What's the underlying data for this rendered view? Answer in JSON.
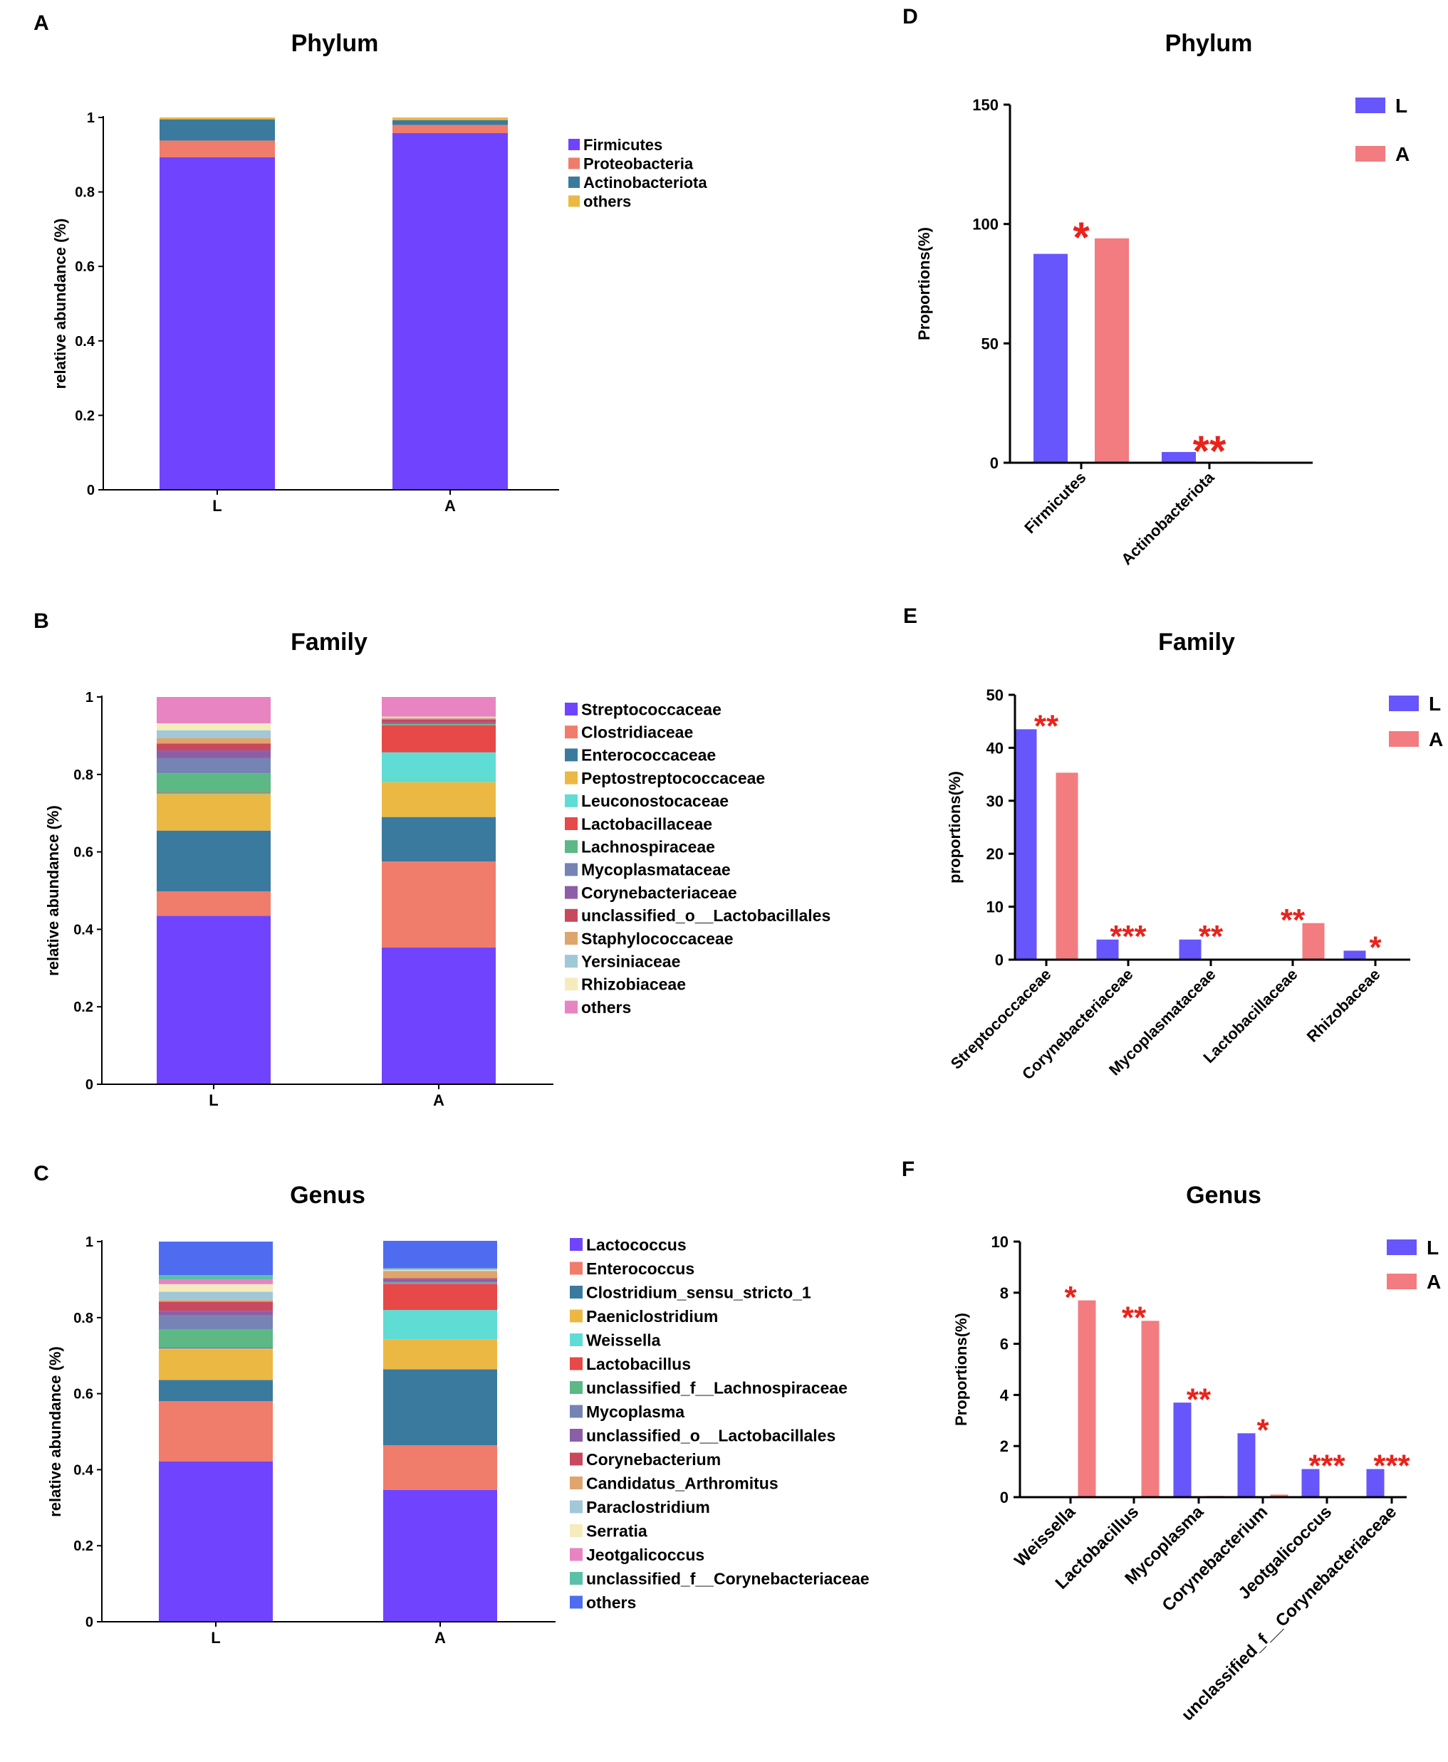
{
  "chart_data": [
    {
      "panel": "A",
      "type": "bar",
      "stacked": true,
      "title": "Phylum",
      "ylabel": "relative abundance (%)",
      "xlabel": "",
      "ylim": [
        0,
        1
      ],
      "yticks": [
        "0",
        "0.2",
        "0.4",
        "0.6",
        "0.8",
        "1"
      ],
      "categories": [
        "L",
        "A"
      ],
      "legend_position": "right",
      "series": [
        {
          "name": "Firmicutes",
          "color": "#7044ff",
          "values": [
            0.893,
            0.958
          ]
        },
        {
          "name": "Proteobacteria",
          "color": "#f07c6c",
          "values": [
            0.045,
            0.022
          ]
        },
        {
          "name": "Actinobacteriota",
          "color": "#3a7a9e",
          "values": [
            0.057,
            0.013
          ]
        },
        {
          "name": "others",
          "color": "#ecb844",
          "values": [
            0.005,
            0.007
          ]
        }
      ]
    },
    {
      "panel": "B",
      "type": "bar",
      "stacked": true,
      "title": "Family",
      "ylabel": "relative abundance (%)",
      "xlabel": "",
      "ylim": [
        0,
        1
      ],
      "yticks": [
        "0",
        "0.2",
        "0.4",
        "0.6",
        "0.8",
        "1"
      ],
      "categories": [
        "L",
        "A"
      ],
      "legend_position": "right",
      "series": [
        {
          "name": "Streptococcaceae",
          "color": "#7044ff",
          "values": [
            0.435,
            0.353
          ]
        },
        {
          "name": "Clostridiaceae",
          "color": "#f07c6c",
          "values": [
            0.063,
            0.222
          ]
        },
        {
          "name": "Enterococcaceae",
          "color": "#3a7a9e",
          "values": [
            0.157,
            0.115
          ]
        },
        {
          "name": "Peptostreptococcaceae",
          "color": "#ecb844",
          "values": [
            0.094,
            0.09
          ]
        },
        {
          "name": "Leuconostocaceae",
          "color": "#5fdcd4",
          "values": [
            0.002,
            0.077
          ]
        },
        {
          "name": "Lactobacillaceae",
          "color": "#e74848",
          "values": [
            0.002,
            0.07
          ]
        },
        {
          "name": "Lachnospiraceae",
          "color": "#5cb885",
          "values": [
            0.05,
            0.003
          ]
        },
        {
          "name": "Mycoplasmataceae",
          "color": "#7584b4",
          "values": [
            0.039,
            0.002
          ]
        },
        {
          "name": "Corynebacteriaceae",
          "color": "#8d5ea8",
          "values": [
            0.02,
            0.002
          ]
        },
        {
          "name": "unclassified_o__Lactobacillales",
          "color": "#c8485e",
          "values": [
            0.018,
            0.008
          ]
        },
        {
          "name": "Staphylococcaceae",
          "color": "#dea56d",
          "values": [
            0.014,
            0.003
          ]
        },
        {
          "name": "Yersiniaceae",
          "color": "#a0c8d8",
          "values": [
            0.02,
            0.002
          ]
        },
        {
          "name": "Rhizobiaceae",
          "color": "#f6ebbd",
          "values": [
            0.018,
            0.002
          ]
        },
        {
          "name": "others",
          "color": "#e884c2",
          "values": [
            0.068,
            0.051
          ]
        }
      ]
    },
    {
      "panel": "C",
      "type": "bar",
      "stacked": true,
      "title": "Genus",
      "ylabel": "relative abundance (%)",
      "xlabel": "",
      "ylim": [
        0,
        1
      ],
      "yticks": [
        "0",
        "0.2",
        "0.4",
        "0.6",
        "0.8",
        "1"
      ],
      "categories": [
        "L",
        "A"
      ],
      "legend_position": "right",
      "series": [
        {
          "name": "Lactococcus",
          "color": "#7044ff",
          "values": [
            0.422,
            0.347
          ]
        },
        {
          "name": "Enterococcus",
          "color": "#f07c6c",
          "values": [
            0.158,
            0.117
          ]
        },
        {
          "name": "Clostridium_sensu_stricto_1",
          "color": "#3a7a9e",
          "values": [
            0.056,
            0.2
          ]
        },
        {
          "name": "Paeniclostridium",
          "color": "#ecb844",
          "values": [
            0.081,
            0.079
          ]
        },
        {
          "name": "Weissella",
          "color": "#5fdcd4",
          "values": [
            0.002,
            0.077
          ]
        },
        {
          "name": "Lactobacillus",
          "color": "#e74848",
          "values": [
            0.002,
            0.069
          ]
        },
        {
          "name": "unclassified_f__Lachnospiraceae",
          "color": "#5cb885",
          "values": [
            0.048,
            0.003
          ]
        },
        {
          "name": "Mycoplasma",
          "color": "#7584b4",
          "values": [
            0.037,
            0.002
          ]
        },
        {
          "name": "unclassified_o__Lactobacillales",
          "color": "#8d5ea8",
          "values": [
            0.012,
            0.008
          ]
        },
        {
          "name": "Corynebacterium",
          "color": "#c8485e",
          "values": [
            0.024,
            0.002
          ]
        },
        {
          "name": "Candidatus_Arthromitus",
          "color": "#dea56d",
          "values": [
            0.004,
            0.018
          ]
        },
        {
          "name": "Paraclostridium",
          "color": "#a0c8d8",
          "values": [
            0.022,
            0.002
          ]
        },
        {
          "name": "Serratia",
          "color": "#f6ebbd",
          "values": [
            0.02,
            0.002
          ]
        },
        {
          "name": "Jeotgalicoccus",
          "color": "#e884c2",
          "values": [
            0.012,
            0.002
          ]
        },
        {
          "name": "unclassified_f__Corynebacteriaceae",
          "color": "#5bc0a8",
          "values": [
            0.012,
            0.002
          ]
        },
        {
          "name": "others",
          "color": "#4f6cf0",
          "values": [
            0.088,
            0.072
          ]
        }
      ]
    },
    {
      "panel": "D",
      "type": "bar",
      "stacked": false,
      "title": "Phylum",
      "ylabel": "Proportions(%)",
      "xlabel": "",
      "ylim": [
        0,
        150
      ],
      "yticks": [
        "0",
        "50",
        "100",
        "150"
      ],
      "categories": [
        "Firmicutes",
        "Actinobacteriota"
      ],
      "significance": [
        "*",
        "**"
      ],
      "legend_position": "top-right",
      "series": [
        {
          "name": "L",
          "color": "#6656fb",
          "values": [
            87.5,
            4.5
          ]
        },
        {
          "name": "A",
          "color": "#f27c80",
          "values": [
            94,
            0.5
          ]
        }
      ]
    },
    {
      "panel": "E",
      "type": "bar",
      "stacked": false,
      "title": "Family",
      "ylabel": "proportions(%)",
      "xlabel": "",
      "ylim": [
        0,
        50
      ],
      "yticks": [
        "0",
        "10",
        "20",
        "30",
        "40",
        "50"
      ],
      "categories": [
        "Streptococcaceae",
        "Corynebacteriaceae",
        "Mycoplasmataceae",
        "Lactobacillaceae",
        "Rhizobaceae"
      ],
      "significance": [
        "**",
        "***",
        "**",
        "**",
        "*"
      ],
      "legend_position": "top-right",
      "series": [
        {
          "name": "L",
          "color": "#6656fb",
          "values": [
            43.5,
            3.8,
            3.8,
            0,
            1.7
          ]
        },
        {
          "name": "A",
          "color": "#f27c80",
          "values": [
            35.3,
            0.2,
            0,
            6.9,
            0
          ]
        }
      ]
    },
    {
      "panel": "F",
      "type": "bar",
      "stacked": false,
      "title": "Genus",
      "ylabel": "Proportions(%)",
      "xlabel": "",
      "ylim": [
        0,
        10
      ],
      "yticks": [
        "0",
        "2",
        "4",
        "6",
        "8",
        "10"
      ],
      "categories": [
        "Weissella",
        "Lactobacillus",
        "Mycoplasma",
        "Corynebacterium",
        "Jeotgalicoccus",
        "unclassified_f__Corynebacteriaceae"
      ],
      "significance": [
        "*",
        "**",
        "**",
        "*",
        "***",
        "***"
      ],
      "legend_position": "top-right",
      "series": [
        {
          "name": "L",
          "color": "#6656fb",
          "values": [
            0,
            0,
            3.7,
            2.5,
            1.1,
            1.1
          ]
        },
        {
          "name": "A",
          "color": "#f27c80",
          "values": [
            7.7,
            6.9,
            0.05,
            0.1,
            0,
            0
          ]
        }
      ]
    }
  ],
  "styles": {
    "significance_color": "#e8231c",
    "axis_color": "#000000"
  }
}
